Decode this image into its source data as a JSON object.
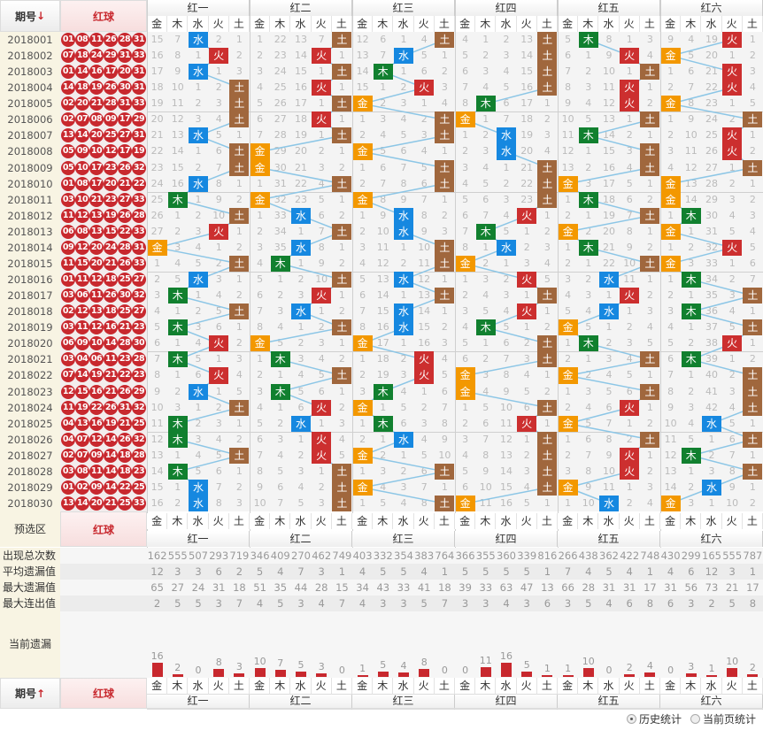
{
  "header": {
    "issue_label": "期号",
    "issue_sort_icon": "arrow-down",
    "red_label": "红球"
  },
  "groups": [
    "红一",
    "红二",
    "红三",
    "红四",
    "红五",
    "红六"
  ],
  "elements": [
    "金",
    "木",
    "水",
    "火",
    "土"
  ],
  "colors": {
    "金": "#f39800",
    "木": "#11802f",
    "水": "#1688e0",
    "火": "#cc2f2f",
    "土": "#a0673d",
    "line": "#8cc6e6"
  },
  "rows": [
    {
      "issue": "2018001",
      "balls": "01 08 11 26 28 31",
      "g": [
        "15 7 水 2 1",
        "1 22 13 7 土",
        "12 6 1 4 土",
        "4 1 2 13 土",
        "5 木 8 1 3",
        "9 4 19 火 1"
      ]
    },
    {
      "issue": "2018002",
      "balls": "07 18 24 29 31 33",
      "g": [
        "16 8 1 火 2",
        "2 23 14 火 1",
        "13 7 水 5 1",
        "5 2 3 14 土",
        "6 1 9 火 4",
        "金 5 20 1 2"
      ]
    },
    {
      "issue": "2018003",
      "balls": "01 14 16 17 20 31",
      "g": [
        "17 9 水 1 3",
        "3 24 15 1 土",
        "14 木 1 6 2",
        "6 3 4 15 土",
        "7 2 10 1 土",
        "1 6 21 火 3"
      ]
    },
    {
      "issue": "2018004",
      "balls": "14 18 19 26 30 31",
      "g": [
        "18 10 1 2 土",
        "4 25 16 火 1",
        "15 1 2 火 3",
        "7 4 5 16 土",
        "8 3 11 火 1",
        "2 7 22 火 4"
      ]
    },
    {
      "issue": "2018005",
      "balls": "02 20 21 28 31 33",
      "g": [
        "19 11 2 3 土",
        "5 26 17 1 土",
        "金 2 3 1 4",
        "8 木 6 17 1",
        "9 4 12 火 2",
        "金 8 23 1 5"
      ]
    },
    {
      "issue": "2018006",
      "balls": "02 07 08 09 17 29",
      "g": [
        "20 12 3 4 土",
        "6 27 18 火 1",
        "1 3 4 2 土",
        "金 1 7 18 2",
        "10 5 13 1 土",
        "1 9 24 2 土"
      ]
    },
    {
      "issue": "2018007",
      "balls": "13 14 20 25 27 31",
      "g": [
        "21 13 水 5 1",
        "7 28 19 1 土",
        "2 4 5 3 土",
        "1 2 水 19 3",
        "11 木 14 2 1",
        "2 10 25 火 1"
      ]
    },
    {
      "issue": "2018008",
      "balls": "05 09 10 12 17 19",
      "g": [
        "22 14 1 6 土",
        "金 29 20 2 1",
        "金 5 6 4 1",
        "2 3 水 20 4",
        "12 1 15 3 土",
        "3 11 26 火 2"
      ]
    },
    {
      "issue": "2018009",
      "balls": "05 10 17 23 26 32",
      "g": [
        "23 15 2 7 土",
        "金 30 21 3 2",
        "1 6 7 5 土",
        "3 4 1 21 土",
        "13 2 16 4 土",
        "4 12 27 1 土"
      ]
    },
    {
      "issue": "2018010",
      "balls": "01 08 17 20 21 22",
      "g": [
        "24 16 水 8 1",
        "1 31 22 4 土",
        "2 7 8 6 土",
        "4 5 2 22 土",
        "金 3 17 5 1",
        "金 13 28 2 1"
      ]
    },
    {
      "issue": "2018011",
      "balls": "03 10 21 23 27 33",
      "g": [
        "25 木 1 9 2",
        "金 32 23 5 1",
        "金 8 9 7 1",
        "5 6 3 23 土",
        "1 木 18 6 2",
        "金 14 29 3 2"
      ]
    },
    {
      "issue": "2018012",
      "balls": "11 12 13 19 26 28",
      "g": [
        "26 1 2 10 土",
        "1 33 水 6 2",
        "1 9 水 8 2",
        "6 7 4 火 1",
        "2 1 19 7 土",
        "1 木 30 4 3"
      ]
    },
    {
      "issue": "2018013",
      "balls": "06 08 13 15 22 33",
      "g": [
        "27 2 3 火 1",
        "2 34 1 7 土",
        "2 10 水 9 3",
        "7 木 5 1 2",
        "金 2 20 8 1",
        "金 1 31 5 4"
      ]
    },
    {
      "issue": "2018014",
      "balls": "09 12 20 24 28 31",
      "g": [
        "金 3 4 1 2",
        "3 35 水 8 1",
        "3 11 1 10 土",
        "8 1 水 2 3",
        "1 木 21 9 2",
        "1 2 32 火 5"
      ]
    },
    {
      "issue": "2018015",
      "balls": "11 15 20 21 26 33",
      "g": [
        "1 4 5 2 土",
        "4 木 1 9 2",
        "4 12 2 11 土",
        "金 2 1 3 4",
        "2 1 22 10 土",
        "金 3 33 1 6"
      ]
    },
    {
      "issue": "2018016",
      "balls": "01 11 12 18 25 27",
      "g": [
        "2 5 水 3 1",
        "5 1 2 10 土",
        "5 13 水 12 1",
        "1 3 2 火 5",
        "3 2 水 11 1",
        "1 木 34 2 7"
      ]
    },
    {
      "issue": "2018017",
      "balls": "03 06 11 26 30 32",
      "g": [
        "3 木 1 4 2",
        "6 2 3 火 1",
        "6 14 1 13 土",
        "2 4 3 1 土",
        "4 3 1 火 2",
        "2 1 35 3 土"
      ]
    },
    {
      "issue": "2018018",
      "balls": "02 12 13 18 25 27",
      "g": [
        "4 1 2 5 土",
        "7 3 水 1 2",
        "7 15 水 14 1",
        "3 5 4 火 1",
        "5 4 水 1 3",
        "3 木 36 4 1"
      ]
    },
    {
      "issue": "2018019",
      "balls": "03 11 12 16 21 23",
      "g": [
        "5 木 3 6 1",
        "8 4 1 2 土",
        "8 16 水 15 2",
        "4 木 5 1 2",
        "金 5 1 2 4",
        "4 1 37 5 土"
      ]
    },
    {
      "issue": "2018020",
      "balls": "06 09 10 14 28 30",
      "g": [
        "6 1 4 火 2",
        "金 5 2 3 1",
        "金 17 1 16 3",
        "5 1 6 2 土",
        "1 木 2 3 5",
        "5 2 38 火 1"
      ]
    },
    {
      "issue": "2018021",
      "balls": "03 04 06 11 23 28",
      "g": [
        "7 木 5 1 3",
        "1 木 3 4 2",
        "1 18 2 火 4",
        "6 2 7 3 土",
        "2 1 3 4 土",
        "6 木 39 1 2"
      ]
    },
    {
      "issue": "2018022",
      "balls": "07 14 19 21 22 23",
      "g": [
        "8 1 6 火 4",
        "2 1 4 5 土",
        "2 19 3 火 5",
        "金 3 8 4 1",
        "金 2 4 5 1",
        "7 1 40 2 土"
      ]
    },
    {
      "issue": "2018023",
      "balls": "12 15 16 21 26 29",
      "g": [
        "9 2 水 1 5",
        "3 木 5 6 1",
        "3 木 4 1 6",
        "金 4 9 5 2",
        "1 3 5 6 土",
        "8 2 41 3 土"
      ]
    },
    {
      "issue": "2018024",
      "balls": "11 19 22 26 31 32",
      "g": [
        "10 3 1 2 土",
        "4 1 6 火 2",
        "金 1 5 2 7",
        "1 5 10 6 土",
        "2 4 6 火 1",
        "9 3 42 4 土"
      ]
    },
    {
      "issue": "2018025",
      "balls": "04 13 16 19 21 25",
      "g": [
        "11 木 2 3 1",
        "5 2 水 1 3",
        "1 木 6 3 8",
        "2 6 11 火 1",
        "金 5 7 1 2",
        "10 4 水 5 1"
      ]
    },
    {
      "issue": "2018026",
      "balls": "04 07 12 14 26 32",
      "g": [
        "12 木 3 4 2",
        "6 3 1 火 4",
        "2 1 水 4 9",
        "3 7 12 1 土",
        "1 6 8 2 土",
        "11 5 1 6 土"
      ]
    },
    {
      "issue": "2018027",
      "balls": "02 07 09 14 18 28",
      "g": [
        "13 1 4 5 土",
        "7 4 2 火 5",
        "金 2 1 5 10",
        "4 8 13 2 土",
        "2 7 9 火 1",
        "12 木 2 7 1"
      ]
    },
    {
      "issue": "2018028",
      "balls": "03 08 11 14 18 23",
      "g": [
        "14 木 5 6 1",
        "8 5 3 1 土",
        "1 3 2 6 土",
        "5 9 14 3 土",
        "3 8 10 火 2",
        "13 1 3 8 土"
      ]
    },
    {
      "issue": "2018029",
      "balls": "01 02 09 14 22 25",
      "g": [
        "15 1 水 7 2",
        "9 6 4 2 土",
        "金 4 3 7 1",
        "6 10 15 4 土",
        "金 9 11 1 3",
        "14 2 水 9 1"
      ]
    },
    {
      "issue": "2018030",
      "balls": "13 14 20 21 25 33",
      "g": [
        "16 2 水 8 3",
        "10 7 5 3 土",
        "1 5 4 8 土",
        "金 11 16 5 1",
        "1 10 水 2 4",
        "金 3 1 10 2"
      ]
    }
  ],
  "preselect": {
    "label": "预选区",
    "red_label": "红球"
  },
  "stats": [
    {
      "label": "出现总次数",
      "values": [
        162,
        555,
        507,
        293,
        719,
        346,
        409,
        270,
        462,
        749,
        403,
        332,
        354,
        383,
        764,
        366,
        355,
        360,
        339,
        816,
        266,
        438,
        362,
        422,
        748,
        430,
        299,
        165,
        555,
        787
      ]
    },
    {
      "label": "平均遗漏值",
      "values": [
        12,
        3,
        3,
        6,
        2,
        5,
        4,
        7,
        3,
        1,
        4,
        5,
        5,
        4,
        1,
        5,
        5,
        5,
        5,
        1,
        7,
        4,
        5,
        4,
        1,
        4,
        6,
        12,
        3,
        1
      ]
    },
    {
      "label": "最大遗漏值",
      "values": [
        65,
        27,
        24,
        31,
        18,
        51,
        35,
        44,
        28,
        15,
        34,
        43,
        33,
        41,
        18,
        39,
        33,
        63,
        47,
        13,
        66,
        28,
        31,
        31,
        17,
        31,
        56,
        73,
        21,
        17
      ]
    },
    {
      "label": "最大连出值",
      "values": [
        2,
        5,
        5,
        3,
        7,
        4,
        5,
        3,
        4,
        7,
        4,
        3,
        3,
        5,
        7,
        3,
        3,
        4,
        3,
        6,
        3,
        5,
        4,
        6,
        8,
        6,
        3,
        2,
        5,
        8
      ]
    }
  ],
  "current_miss": {
    "label": "当前遗漏",
    "values": [
      16,
      2,
      0,
      8,
      3,
      10,
      7,
      5,
      3,
      0,
      1,
      5,
      4,
      8,
      0,
      0,
      11,
      16,
      5,
      1,
      1,
      10,
      0,
      2,
      4,
      0,
      3,
      1,
      10,
      2
    ]
  },
  "footer": {
    "issue_label": "期号",
    "issue_sort_icon": "arrow-up",
    "red_label": "红球"
  },
  "options": {
    "history": "历史统计",
    "current_page": "当前页统计",
    "selected": "history"
  }
}
